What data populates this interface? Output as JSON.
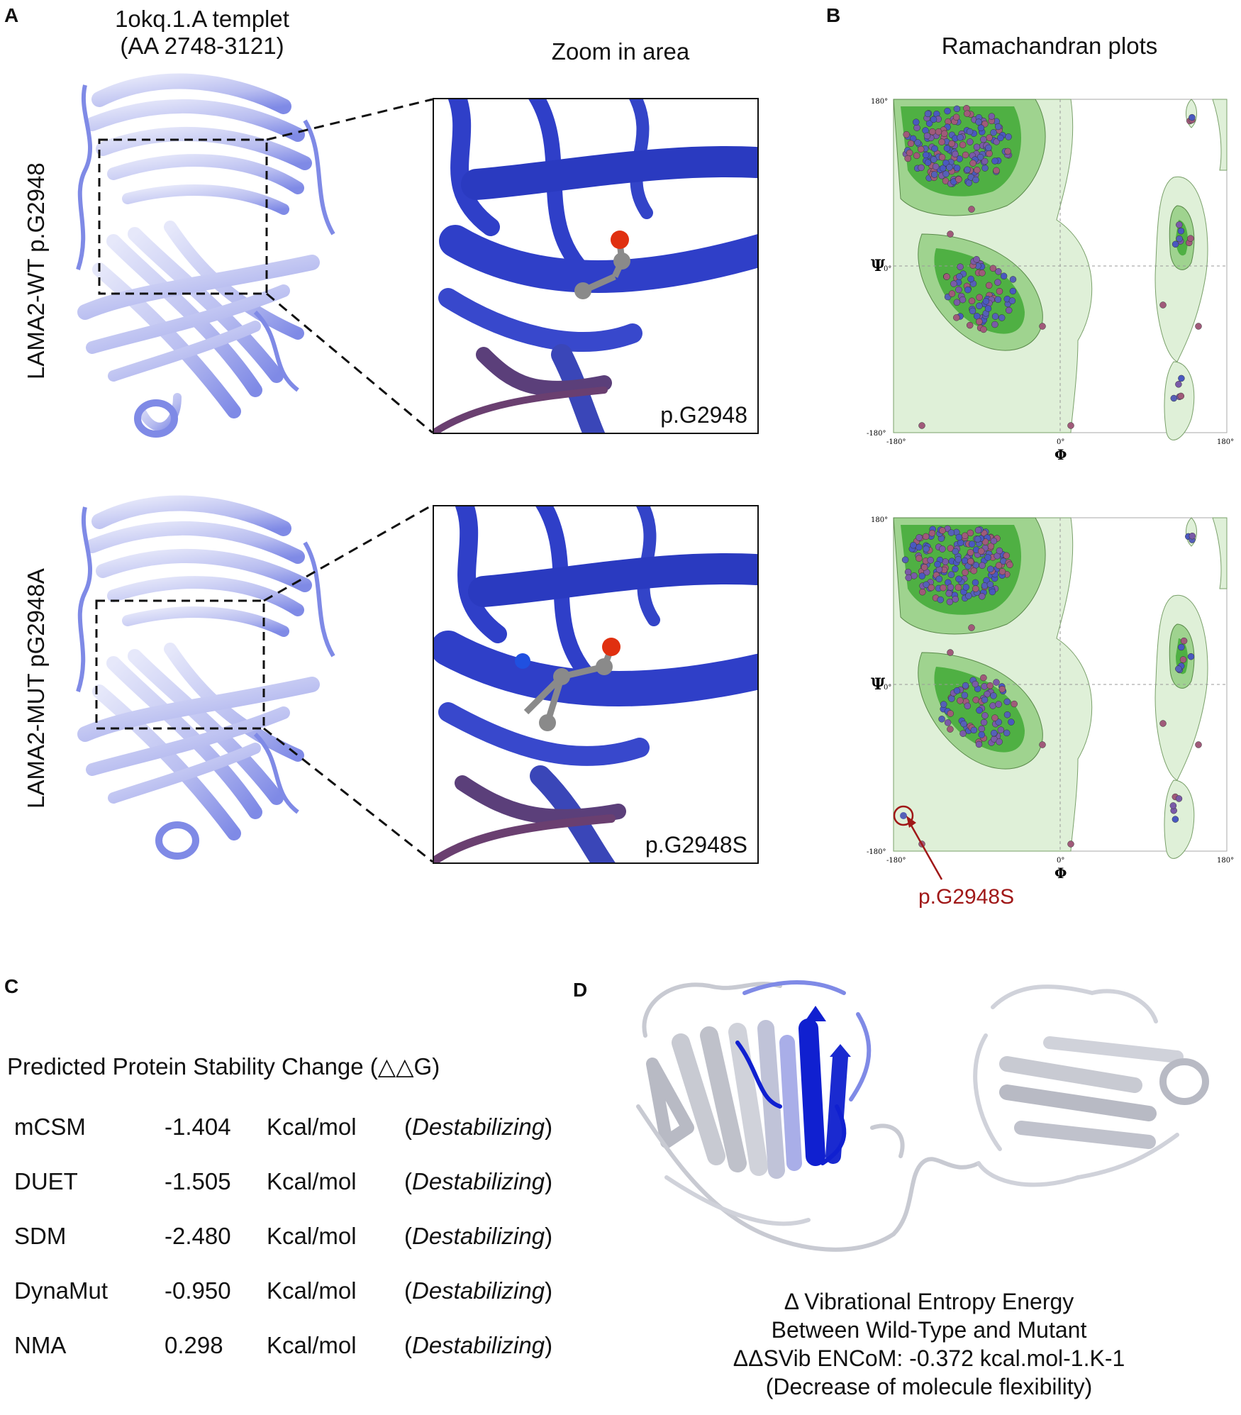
{
  "panels": {
    "A": "A",
    "B": "B",
    "C": "C",
    "D": "D"
  },
  "panel_a": {
    "template_title_line1": "1okq.1.A templet",
    "template_title_line2": "(AA 2748-3121)",
    "zoom_title": "Zoom in area",
    "wt_label": "LAMA2-WT p.G2948",
    "mut_label": "LAMA2-MUT pG2948A",
    "wt_zoom_label": "p.G2948",
    "mut_zoom_label": "p.G2948S"
  },
  "panel_b": {
    "title": "Ramachandran plots",
    "psi_symbol": "Ψ",
    "phi_symbol": "Φ",
    "tick_180_pos": "180°",
    "tick_0": "0°",
    "tick_180_neg": "-180°",
    "mutation_callout": "p.G2948S"
  },
  "panel_c": {
    "heading": "Predicted Protein Stability Change (△△G)",
    "rows": [
      {
        "method": "mCSM",
        "value": "-1.404",
        "unit": "Kcal/mol",
        "effect": "Destabilizing"
      },
      {
        "method": "DUET",
        "value": "-1.505",
        "unit": "Kcal/mol",
        "effect": "Destabilizing"
      },
      {
        "method": "SDM",
        "value": "-2.480",
        "unit": "Kcal/mol",
        "effect": "Destabilizing"
      },
      {
        "method": "DynaMut",
        "value": "-0.950",
        "unit": "Kcal/mol",
        "effect": "Destabilizing"
      },
      {
        "method": "NMA",
        "value": "0.298",
        "unit": "Kcal/mol",
        "effect": "Destabilizing"
      }
    ],
    "open_paren": "(",
    "close_paren": ")"
  },
  "panel_d": {
    "caption_line1": "Δ Vibrational Entropy Energy",
    "caption_line2": "Between Wild-Type and Mutant",
    "caption_line3": "ΔΔSVib ENCoM: -0.372 kcal.mol-1.K-1",
    "caption_line4": "(Decrease of molecule flexibility)"
  },
  "colors": {
    "ribbon_light": "#b8bdf0",
    "ribbon_mid": "#7f8ae6",
    "zoom_blue": "#2f3fc8",
    "zoom_purple": "#5b3f7a",
    "oxygen": "#e03010",
    "carbon": "#8a8a8a",
    "nitrogen": "#2050e0",
    "rama_outer": "#dff0d8",
    "rama_mid": "#9fd38f",
    "rama_core": "#4fb043",
    "callout_red": "#a01818",
    "d_grey": "#c8cad2",
    "d_blue": "#1020d0"
  }
}
